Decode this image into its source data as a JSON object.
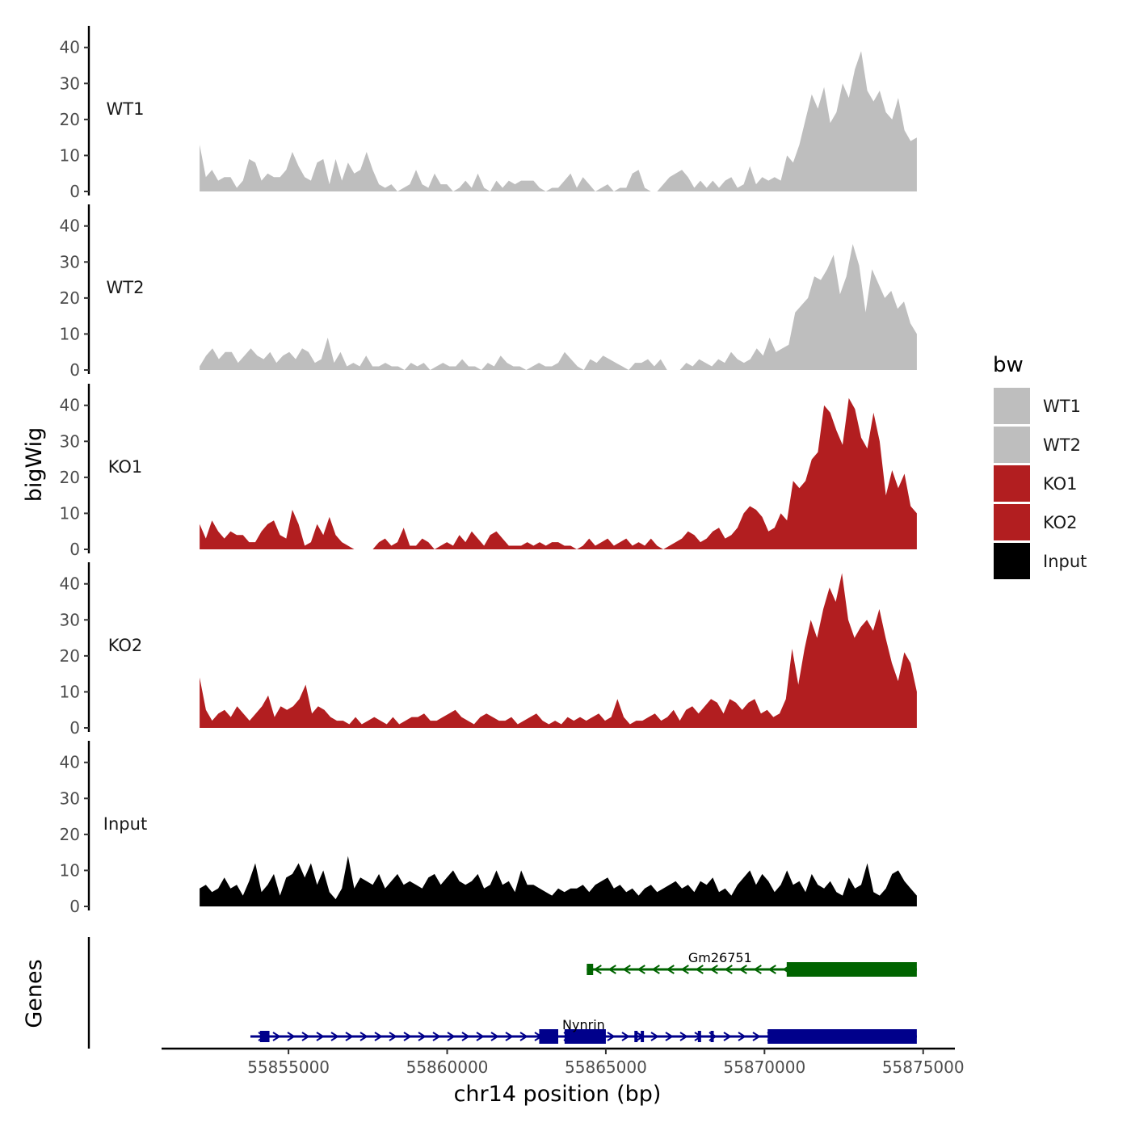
{
  "chart_data": {
    "type": "area",
    "chromosome": "chr14",
    "xlabel": "chr14 position (bp)",
    "ylabel": "bigWig",
    "genes_label": "Genes",
    "legend_title": "bw",
    "xlim": [
      55851000,
      55876000
    ],
    "ylim": [
      0,
      46
    ],
    "data_range": [
      55852200,
      55874800
    ],
    "x_ticks": [
      55855000,
      55860000,
      55865000,
      55870000,
      55875000
    ],
    "x_tick_labels": [
      "55855000",
      "55860000",
      "55865000",
      "55870000",
      "55875000"
    ],
    "y_ticks": [
      0,
      10,
      20,
      30,
      40
    ],
    "y_tick_labels": [
      "0",
      "10",
      "20",
      "30",
      "40"
    ],
    "series": [
      {
        "name": "WT1",
        "label": "WT1",
        "color": "#bebebe",
        "values": [
          13,
          4,
          6,
          3,
          4,
          4,
          1,
          3,
          9,
          8,
          3,
          5,
          4,
          4,
          6,
          11,
          7,
          4,
          3,
          8,
          9,
          2,
          9,
          3,
          8,
          5,
          6,
          11,
          6,
          2,
          1,
          2,
          0,
          1,
          2,
          6,
          2,
          1,
          5,
          2,
          2,
          0,
          1,
          3,
          1,
          5,
          1,
          0,
          3,
          1,
          3,
          2,
          3,
          3,
          3,
          1,
          0,
          1,
          1,
          3,
          5,
          1,
          4,
          2,
          0,
          1,
          2,
          0,
          1,
          1,
          5,
          6,
          1,
          0,
          0,
          2,
          4,
          5,
          6,
          4,
          1,
          3,
          1,
          3,
          1,
          3,
          4,
          1,
          2,
          7,
          2,
          4,
          3,
          4,
          3,
          10,
          8,
          13,
          20,
          27,
          23,
          29,
          19,
          22,
          30,
          26,
          34,
          39,
          28,
          25,
          28,
          22,
          20,
          26,
          17,
          14,
          15
        ]
      },
      {
        "name": "WT2",
        "label": "WT2",
        "color": "#bebebe",
        "values": [
          1,
          4,
          6,
          3,
          5,
          5,
          2,
          4,
          6,
          4,
          3,
          5,
          2,
          4,
          5,
          3,
          6,
          5,
          2,
          3,
          9,
          2,
          5,
          1,
          2,
          1,
          4,
          1,
          1,
          2,
          1,
          1,
          0,
          2,
          1,
          2,
          0,
          1,
          2,
          1,
          1,
          3,
          1,
          1,
          0,
          2,
          1,
          4,
          2,
          1,
          1,
          0,
          1,
          2,
          1,
          1,
          2,
          5,
          3,
          1,
          0,
          3,
          2,
          4,
          3,
          2,
          1,
          0,
          2,
          2,
          3,
          1,
          3,
          0,
          0,
          0,
          2,
          1,
          3,
          2,
          1,
          3,
          2,
          5,
          3,
          2,
          3,
          6,
          4,
          9,
          5,
          6,
          7,
          16,
          18,
          20,
          26,
          25,
          28,
          32,
          21,
          26,
          35,
          29,
          16,
          28,
          24,
          20,
          22,
          17,
          19,
          13,
          10
        ]
      },
      {
        "name": "KO1",
        "label": "KO1",
        "color": "#b21e20",
        "values": [
          7,
          3,
          8,
          5,
          3,
          5,
          4,
          4,
          2,
          2,
          5,
          7,
          8,
          4,
          3,
          11,
          7,
          1,
          2,
          7,
          4,
          9,
          4,
          2,
          1,
          0,
          0,
          0,
          0,
          2,
          3,
          1,
          2,
          6,
          1,
          1,
          3,
          2,
          0,
          1,
          2,
          1,
          4,
          2,
          5,
          3,
          1,
          4,
          5,
          3,
          1,
          1,
          1,
          2,
          1,
          2,
          1,
          2,
          2,
          1,
          1,
          0,
          1,
          3,
          1,
          2,
          3,
          1,
          2,
          3,
          1,
          2,
          1,
          3,
          1,
          0,
          1,
          2,
          3,
          5,
          4,
          2,
          3,
          5,
          6,
          3,
          4,
          6,
          10,
          12,
          11,
          9,
          5,
          6,
          10,
          8,
          19,
          17,
          19,
          25,
          27,
          40,
          38,
          33,
          29,
          42,
          39,
          31,
          28,
          38,
          30,
          15,
          22,
          17,
          21,
          12,
          10
        ]
      },
      {
        "name": "KO2",
        "label": "KO2",
        "color": "#b21e20",
        "values": [
          14,
          5,
          2,
          4,
          5,
          3,
          6,
          4,
          2,
          4,
          6,
          9,
          3,
          6,
          5,
          6,
          8,
          12,
          4,
          6,
          5,
          3,
          2,
          2,
          1,
          3,
          1,
          2,
          3,
          2,
          1,
          3,
          1,
          2,
          3,
          3,
          4,
          2,
          2,
          3,
          4,
          5,
          3,
          2,
          1,
          3,
          4,
          3,
          2,
          2,
          3,
          1,
          2,
          3,
          4,
          2,
          1,
          2,
          1,
          3,
          2,
          3,
          2,
          3,
          4,
          2,
          3,
          8,
          3,
          1,
          2,
          2,
          3,
          4,
          2,
          3,
          5,
          2,
          5,
          6,
          4,
          6,
          8,
          7,
          4,
          8,
          7,
          5,
          7,
          8,
          4,
          5,
          3,
          4,
          8,
          22,
          12,
          22,
          30,
          25,
          33,
          39,
          35,
          43,
          30,
          25,
          28,
          30,
          27,
          33,
          25,
          18,
          13,
          21,
          18,
          10
        ]
      },
      {
        "name": "Input",
        "label": "Input",
        "color": "#000000",
        "values": [
          5,
          6,
          4,
          5,
          8,
          5,
          6,
          3,
          7,
          12,
          4,
          6,
          9,
          3,
          8,
          9,
          12,
          8,
          12,
          6,
          10,
          4,
          2,
          5,
          14,
          5,
          8,
          7,
          6,
          9,
          5,
          7,
          9,
          6,
          7,
          6,
          5,
          8,
          9,
          6,
          8,
          10,
          7,
          6,
          7,
          9,
          5,
          6,
          10,
          6,
          7,
          4,
          10,
          6,
          6,
          5,
          4,
          3,
          5,
          4,
          5,
          5,
          6,
          4,
          6,
          7,
          8,
          5,
          6,
          4,
          5,
          3,
          5,
          6,
          4,
          5,
          6,
          7,
          5,
          6,
          4,
          7,
          6,
          8,
          4,
          5,
          3,
          6,
          8,
          10,
          6,
          9,
          7,
          4,
          6,
          10,
          6,
          7,
          4,
          9,
          6,
          5,
          7,
          4,
          3,
          8,
          5,
          6,
          12,
          4,
          3,
          5,
          9,
          10,
          7,
          5,
          3
        ]
      }
    ],
    "genes": [
      {
        "name": "Gm26751",
        "strand": "-",
        "color": "#006400",
        "row": 1,
        "start": 55864400,
        "end": 55874800,
        "label_pos": 55868600,
        "exons": [
          [
            55864400,
            55864600,
            "thin"
          ],
          [
            55870700,
            55874800,
            "thick"
          ]
        ]
      },
      {
        "name": "Nynrin",
        "strand": "+",
        "color": "#00008b",
        "row": 2,
        "start": 55853800,
        "end": 55874800,
        "label_pos": 55864300,
        "exons": [
          [
            55854100,
            55854400,
            "thin"
          ],
          [
            55862900,
            55863500,
            "thick"
          ],
          [
            55863700,
            55865000,
            "thick"
          ],
          [
            55865900,
            55866000,
            "thin"
          ],
          [
            55866100,
            55866200,
            "thin"
          ],
          [
            55867900,
            55868000,
            "thin"
          ],
          [
            55868300,
            55868400,
            "thin"
          ],
          [
            55870100,
            55874800,
            "thick"
          ]
        ]
      }
    ]
  }
}
